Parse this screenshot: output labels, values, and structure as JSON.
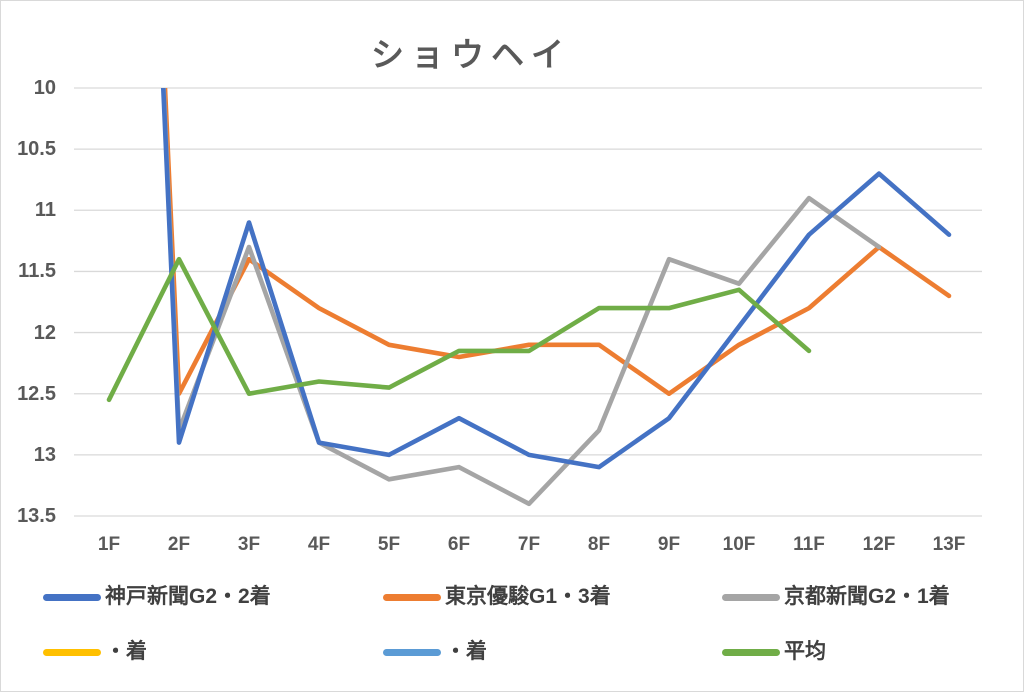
{
  "title": "ショウヘイ",
  "colors": {
    "background": "#FFFFFF",
    "border": "#D9D9D9",
    "gridline": "#D9D9D9",
    "axis_text": "#595959",
    "legend_text": "#404040"
  },
  "chart_data": {
    "type": "line",
    "title": "ショウヘイ",
    "xlabel": "",
    "ylabel": "",
    "categories": [
      "1F",
      "2F",
      "3F",
      "4F",
      "5F",
      "6F",
      "7F",
      "8F",
      "9F",
      "10F",
      "11F",
      "12F",
      "13F"
    ],
    "y_axis": {
      "ticks": [
        10,
        10.5,
        11,
        11.5,
        12,
        12.5,
        13,
        13.5
      ],
      "min": 10,
      "max": 13.5,
      "inverted": true
    },
    "grid": "horizontal",
    "legend_position": "bottom",
    "series": [
      {
        "name": "神戸新聞G2・2着",
        "color": "#4472C4",
        "values": [
          0,
          12.9,
          11.1,
          12.9,
          13.0,
          12.7,
          13.0,
          13.1,
          12.7,
          11.95,
          11.2,
          10.7,
          11.2
        ]
      },
      {
        "name": "東京優駿G1・3着",
        "color": "#ED7D31",
        "values": [
          0,
          12.5,
          11.4,
          11.8,
          12.1,
          12.2,
          12.1,
          12.1,
          12.5,
          12.1,
          11.8,
          11.3,
          11.7
        ]
      },
      {
        "name": "京都新聞G2・1着",
        "color": "#A5A5A5",
        "values": [
          0,
          12.8,
          11.3,
          12.9,
          13.2,
          13.1,
          13.4,
          12.8,
          11.4,
          11.6,
          10.9,
          11.3,
          null
        ]
      },
      {
        "name": "・着",
        "color": "#FFC000",
        "values": []
      },
      {
        "name": "・着",
        "color": "#5B9BD5",
        "values": []
      },
      {
        "name": "平均",
        "color": "#70AD47",
        "values": [
          12.55,
          11.4,
          12.5,
          12.4,
          12.45,
          12.15,
          12.15,
          11.8,
          11.8,
          11.65,
          12.15,
          null,
          null
        ]
      }
    ]
  }
}
